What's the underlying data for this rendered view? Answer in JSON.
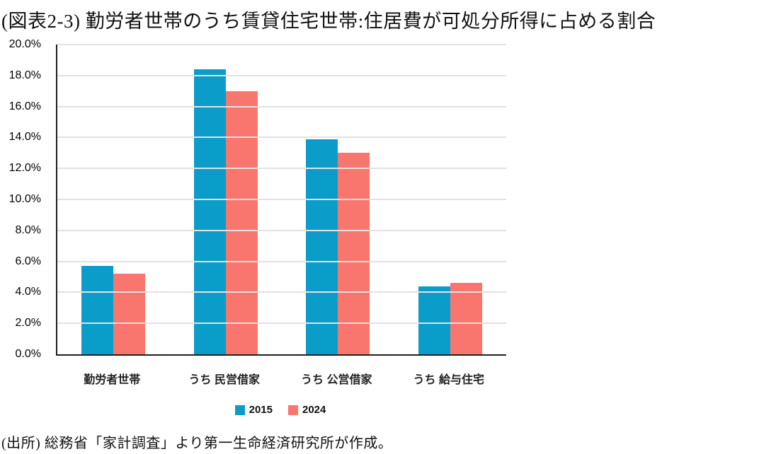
{
  "title": "(図表2-3) 勤労者世帯のうち賃貸住宅世帯:住居費が可処分所得に占める割合",
  "source": "(出所) 総務省「家計調査」より第一生命経済研究所が作成。",
  "colors": {
    "series_2015": "#0A9DC9",
    "series_2024": "#F8766D",
    "gridline": "#E2E2E2",
    "axis": "#1F1F1F"
  },
  "chart_data": {
    "type": "bar",
    "title": "(図表2-3) 勤労者世帯のうち賃貸住宅世帯:住居費が可処分所得に占める割合",
    "categories": [
      "勤労者世帯",
      "うち 民営借家",
      "うち 公営借家",
      "うち 給与住宅"
    ],
    "series": [
      {
        "name": "2015",
        "color": "#0A9DC9",
        "values": [
          5.7,
          18.4,
          13.9,
          4.4
        ]
      },
      {
        "name": "2024",
        "color": "#F8766D",
        "values": [
          5.2,
          17.0,
          13.0,
          4.6
        ]
      }
    ],
    "xlabel": "",
    "ylabel": "",
    "ylim": [
      0,
      20
    ],
    "yticks": [
      0,
      2,
      4,
      6,
      8,
      10,
      12,
      14,
      16,
      18,
      20
    ],
    "ytick_suffix": "%",
    "ytick_decimals": 1,
    "grid": true,
    "legend_position": "bottom"
  }
}
